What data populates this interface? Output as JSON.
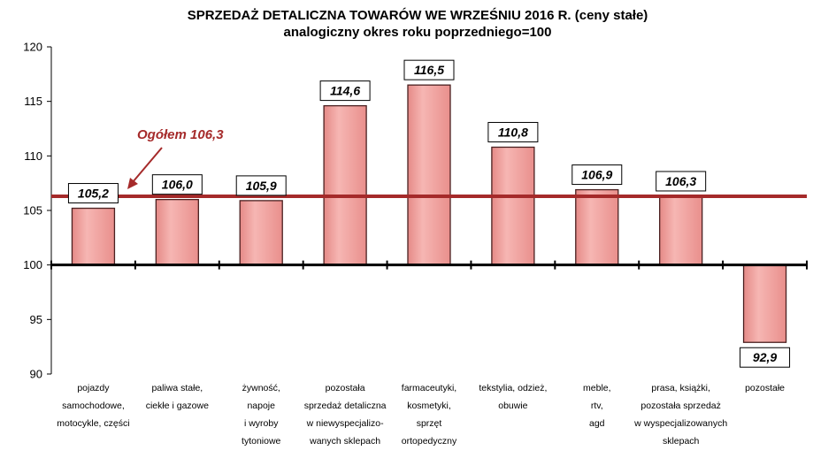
{
  "chart_data": {
    "type": "bar",
    "title": "SPRZEDAŻ DETALICZNA TOWARÓW WE WRZEŚNIU 2016 R. (ceny stałe)",
    "subtitle": "analogiczny okres roku poprzedniego=100",
    "categories": [
      [
        "pojazdy",
        "samochodowe,",
        "motocykle, części"
      ],
      [
        "paliwa stałe,",
        "ciekłe i gazowe"
      ],
      [
        "żywność,",
        "napoje",
        "i wyroby",
        "tytoniowe"
      ],
      [
        "pozostała",
        "sprzedaż detaliczna",
        "w niewyspecjalizo-",
        "wanych sklepach"
      ],
      [
        "farmaceutyki,",
        "kosmetyki,",
        "sprzęt",
        "ortopedyczny"
      ],
      [
        "tekstylia, odzież,",
        "obuwie"
      ],
      [
        "meble,",
        "rtv,",
        "agd"
      ],
      [
        "prasa, książki,",
        "pozostała sprzedaż",
        "w wyspecjalizowanych",
        "sklepach"
      ],
      [
        "pozostałe"
      ]
    ],
    "values": [
      105.2,
      106.0,
      105.9,
      114.6,
      116.5,
      110.8,
      106.9,
      106.3,
      92.9
    ],
    "value_labels": [
      "105,2",
      "106,0",
      "105,9",
      "114,6",
      "116,5",
      "110,8",
      "106,9",
      "106,3",
      "92,9"
    ],
    "baseline": 100,
    "ylim": [
      90,
      120
    ],
    "yticks": [
      90,
      95,
      100,
      105,
      110,
      115,
      120
    ],
    "reference_line": {
      "value": 106.3,
      "label": "Ogółem 106,3"
    },
    "grid": false,
    "colors": {
      "bar_fill": "#f0a3a0",
      "bar_stroke": "#4a2020",
      "reference": "#a52a2a",
      "axis": "#000000"
    }
  }
}
